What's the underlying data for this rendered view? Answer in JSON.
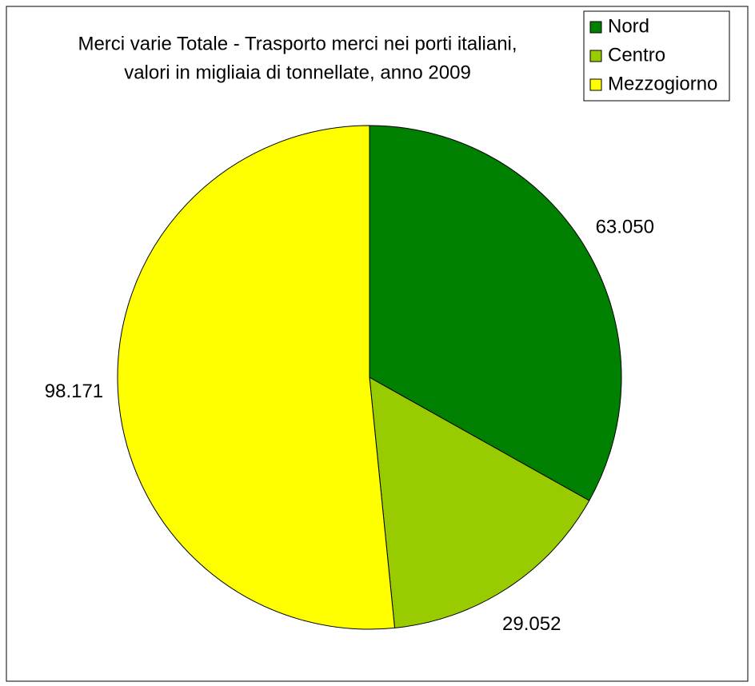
{
  "chart_data": {
    "type": "pie",
    "title": [
      "Merci  varie Totale - Trasporto merci nei porti italiani,",
      "valori in migliaia di tonnellate, anno 2009"
    ],
    "categories": [
      "Nord",
      "Centro",
      "Mezzogiorno"
    ],
    "values": [
      63050,
      29052,
      98171
    ],
    "value_labels": [
      "63.050",
      "29.052",
      "98.171"
    ],
    "colors": [
      "#008000",
      "#99cc00",
      "#ffff00"
    ],
    "legend": "top-right"
  }
}
